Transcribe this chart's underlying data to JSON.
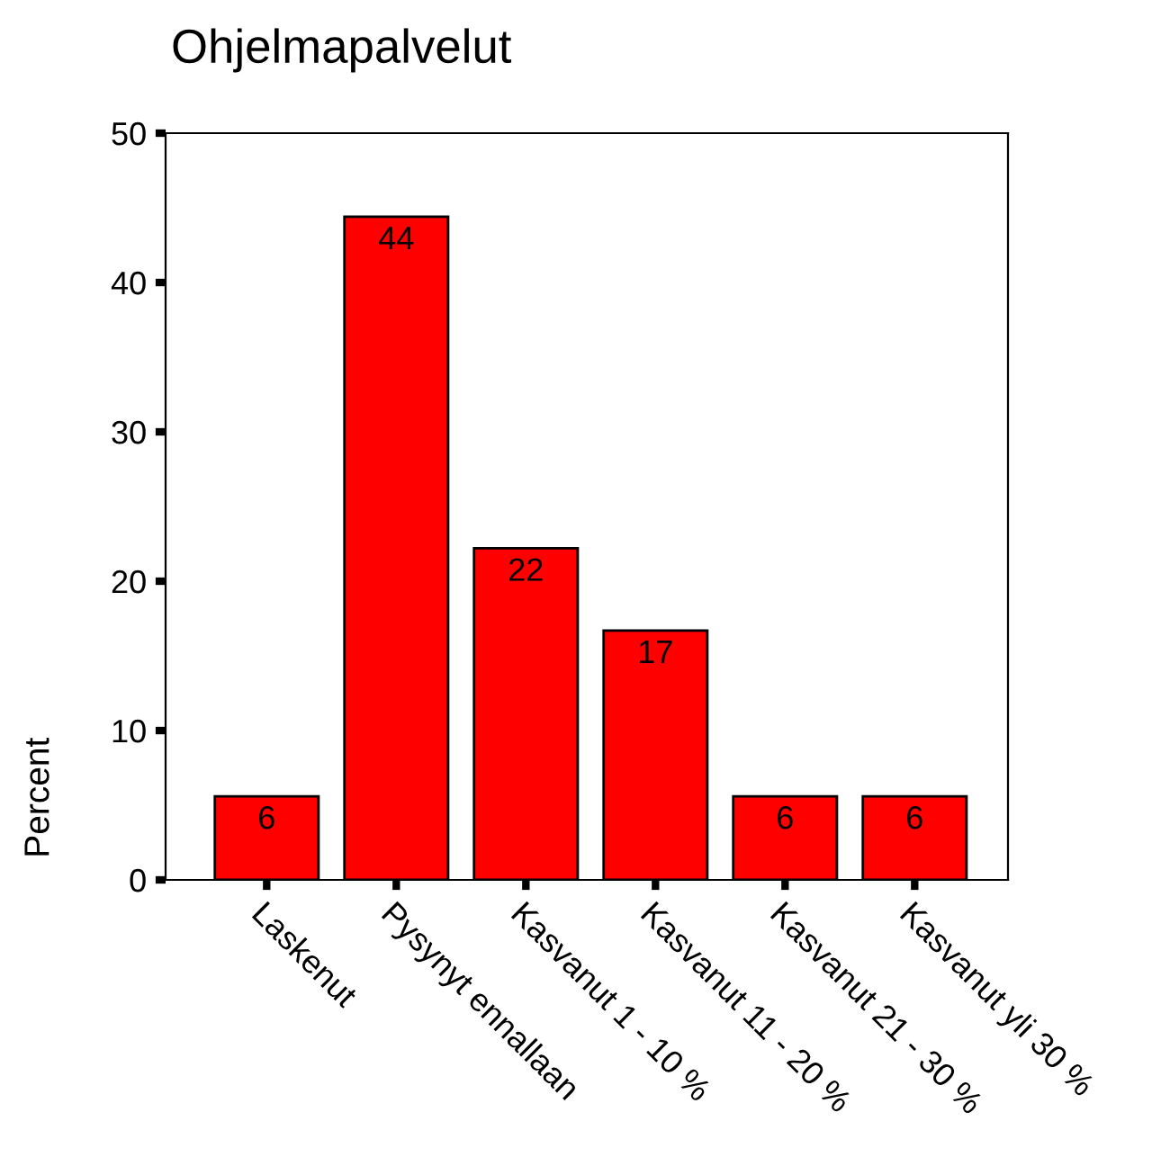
{
  "chart_data": {
    "type": "bar",
    "title": "Ohjelmapalvelut",
    "ylabel": "Percent",
    "categories": [
      "Laskenut",
      "Pysynyt ennallaan",
      "Kasvanut 1 - 10 %",
      "Kasvanut 11 - 20 %",
      "Kasvanut 21 - 30 %",
      "Kasvanut yli 30 %"
    ],
    "values": [
      5.6,
      44.4,
      22.2,
      16.7,
      5.6,
      5.6
    ],
    "value_labels": [
      "6",
      "44",
      "22",
      "17",
      "6",
      "6"
    ],
    "color": "#ff0000",
    "ylim": [
      0,
      50
    ],
    "yticks": [
      0,
      10,
      20,
      30,
      40,
      50
    ],
    "grid": false,
    "legend": false
  }
}
